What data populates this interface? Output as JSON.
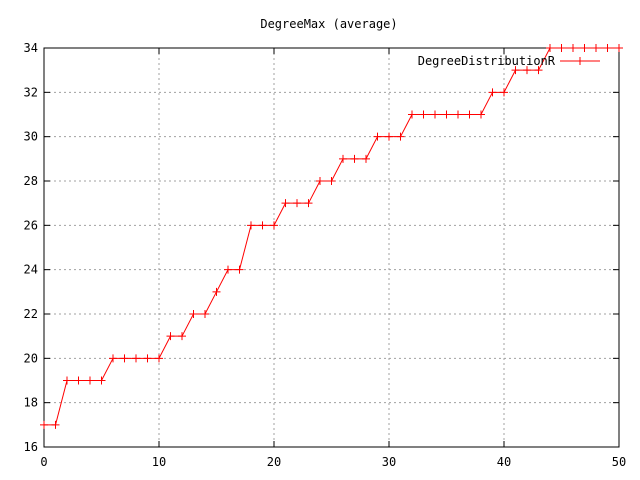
{
  "chart_data": {
    "type": "line",
    "title": "DegreeMax (average)",
    "xlabel": "",
    "ylabel": "",
    "xlim": [
      0,
      50
    ],
    "ylim": [
      16,
      34
    ],
    "xticks": [
      0,
      10,
      20,
      30,
      40,
      50
    ],
    "yticks": [
      16,
      18,
      20,
      22,
      24,
      26,
      28,
      30,
      32,
      34
    ],
    "grid": true,
    "legend": "top-right",
    "series": [
      {
        "name": "DegreeDistributionR",
        "color": "#ff0000",
        "marker": "plus",
        "x": [
          0,
          1,
          2,
          3,
          4,
          5,
          6,
          7,
          8,
          9,
          10,
          11,
          12,
          13,
          14,
          15,
          16,
          17,
          18,
          19,
          20,
          21,
          22,
          23,
          24,
          25,
          26,
          27,
          28,
          29,
          30,
          31,
          32,
          33,
          34,
          35,
          36,
          37,
          38,
          39,
          40,
          41,
          42,
          43,
          44,
          45,
          46,
          47,
          48,
          49,
          50
        ],
        "values": [
          17,
          17,
          19,
          19,
          19,
          19,
          20,
          20,
          20,
          20,
          20,
          21,
          21,
          22,
          22,
          23,
          24,
          24,
          26,
          26,
          26,
          27,
          27,
          27,
          28,
          28,
          29,
          29,
          29,
          30,
          30,
          30,
          31,
          31,
          31,
          31,
          31,
          31,
          31,
          32,
          32,
          33,
          33,
          33,
          34,
          34,
          34,
          34,
          34,
          34,
          34
        ]
      }
    ]
  }
}
